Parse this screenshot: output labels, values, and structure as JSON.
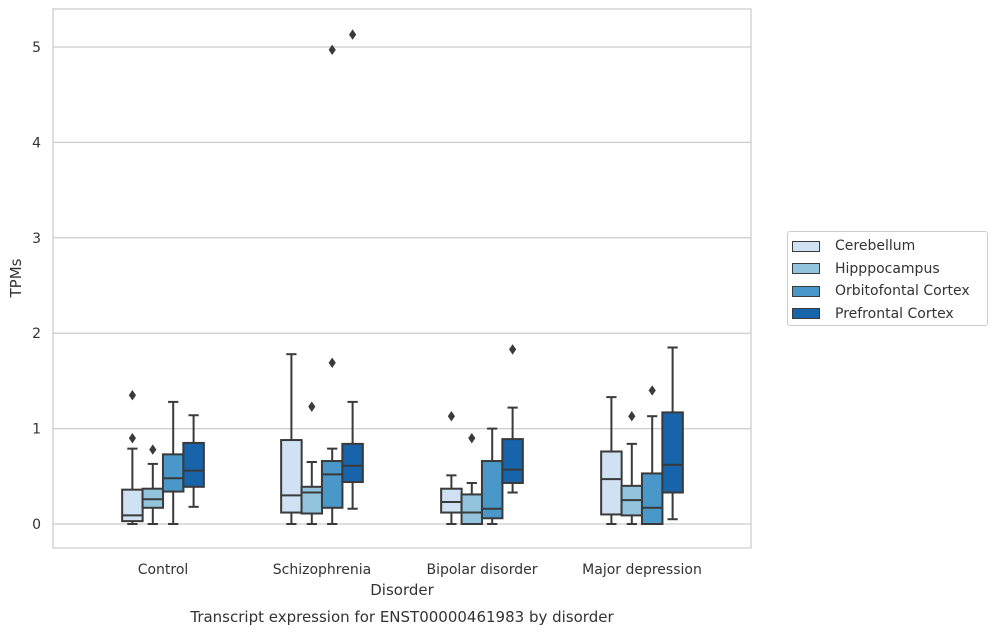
{
  "chart_data": {
    "type": "box",
    "title": "Transcript expression for ENST00000461983 by disorder",
    "xlabel": "Disorder",
    "ylabel": "TPMs",
    "ylim": [
      -0.25,
      5.4
    ],
    "yticks": [
      0,
      1,
      2,
      3,
      4,
      5
    ],
    "ytick_labels": [
      "0",
      "1",
      "2",
      "3",
      "4",
      "5"
    ],
    "grid": "horizontal",
    "legend_position": "outside-right",
    "categories": [
      "Control",
      "Schizophrenia",
      "Bipolar disorder",
      "Major depression"
    ],
    "series": [
      {
        "name": "Cerebellum",
        "color": "#cfe1f2",
        "boxes": [
          {
            "min": 0.0,
            "q1": 0.03,
            "median": 0.09,
            "q3": 0.36,
            "max": 0.79,
            "outliers": [
              0.9,
              1.35
            ]
          },
          {
            "min": 0.0,
            "q1": 0.12,
            "median": 0.3,
            "q3": 0.88,
            "max": 1.78,
            "outliers": []
          },
          {
            "min": 0.0,
            "q1": 0.12,
            "median": 0.23,
            "q3": 0.37,
            "max": 0.51,
            "outliers": [
              1.13
            ]
          },
          {
            "min": 0.0,
            "q1": 0.1,
            "median": 0.47,
            "q3": 0.76,
            "max": 1.33,
            "outliers": []
          }
        ]
      },
      {
        "name": "Hipppocampus",
        "color": "#93c4de",
        "boxes": [
          {
            "min": 0.0,
            "q1": 0.17,
            "median": 0.26,
            "q3": 0.37,
            "max": 0.63,
            "outliers": [
              0.78
            ]
          },
          {
            "min": 0.0,
            "q1": 0.11,
            "median": 0.33,
            "q3": 0.39,
            "max": 0.65,
            "outliers": [
              1.23
            ]
          },
          {
            "min": 0.0,
            "q1": 0.0,
            "median": 0.12,
            "q3": 0.31,
            "max": 0.43,
            "outliers": [
              0.9
            ]
          },
          {
            "min": 0.0,
            "q1": 0.09,
            "median": 0.25,
            "q3": 0.4,
            "max": 0.84,
            "outliers": [
              1.13
            ]
          }
        ]
      },
      {
        "name": "Orbitofontal Cortex",
        "color": "#4a98c9",
        "boxes": [
          {
            "min": 0.0,
            "q1": 0.34,
            "median": 0.48,
            "q3": 0.73,
            "max": 1.28,
            "outliers": []
          },
          {
            "min": 0.0,
            "q1": 0.17,
            "median": 0.52,
            "q3": 0.66,
            "max": 0.79,
            "outliers": [
              1.69,
              4.97
            ]
          },
          {
            "min": 0.0,
            "q1": 0.06,
            "median": 0.16,
            "q3": 0.66,
            "max": 1.0,
            "outliers": []
          },
          {
            "min": 0.0,
            "q1": 0.0,
            "median": 0.17,
            "q3": 0.53,
            "max": 1.13,
            "outliers": [
              1.4
            ]
          }
        ]
      },
      {
        "name": "Prefrontal Cortex",
        "color": "#1764ab",
        "boxes": [
          {
            "min": 0.18,
            "q1": 0.39,
            "median": 0.56,
            "q3": 0.85,
            "max": 1.14,
            "outliers": []
          },
          {
            "min": 0.16,
            "q1": 0.44,
            "median": 0.61,
            "q3": 0.84,
            "max": 1.28,
            "outliers": [
              5.13
            ]
          },
          {
            "min": 0.33,
            "q1": 0.43,
            "median": 0.57,
            "q3": 0.89,
            "max": 1.22,
            "outliers": [
              1.83
            ]
          },
          {
            "min": 0.05,
            "q1": 0.33,
            "median": 0.62,
            "q3": 1.17,
            "max": 1.85,
            "outliers": []
          }
        ]
      }
    ]
  }
}
